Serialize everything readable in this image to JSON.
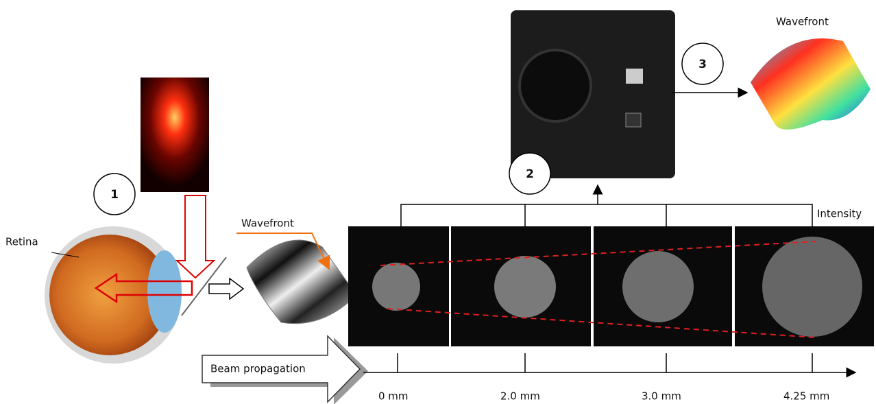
{
  "top_wavefront_label": "Wavefront",
  "steps": [
    "1",
    "2",
    "3"
  ],
  "retina_label": "Retina",
  "mid_wavefront_label": "Wavefront",
  "intensity_label": "Intensity",
  "beam_label": "Beam propagation",
  "distances": [
    "0 mm",
    "2.0 mm",
    "3.0 mm",
    "4.25 mm"
  ]
}
